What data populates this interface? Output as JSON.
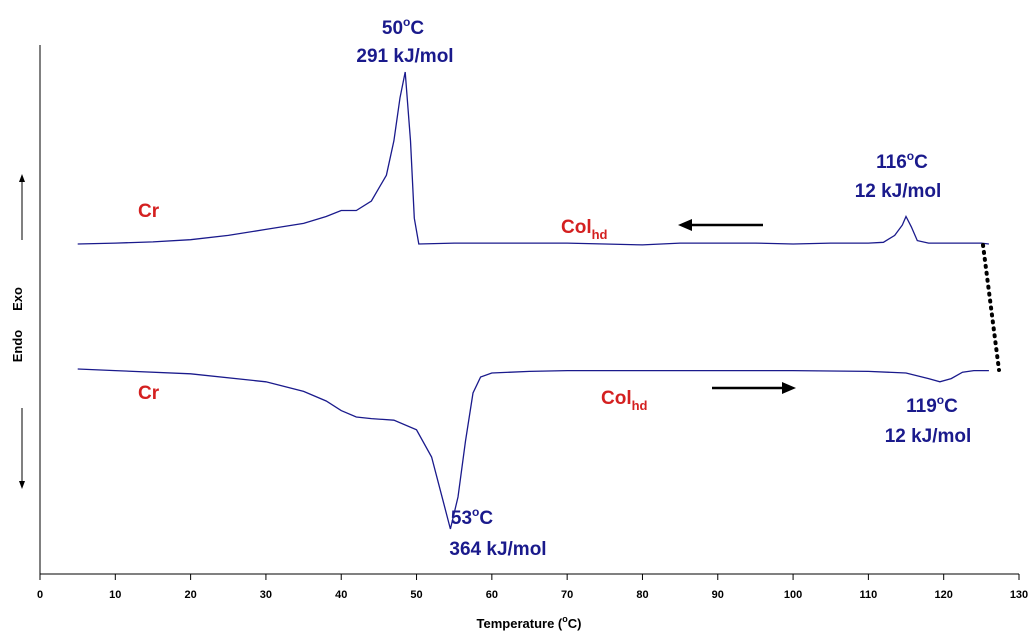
{
  "chart_data": {
    "type": "line",
    "xlabel": "Temperature (°C)",
    "xlabel_parts": {
      "prefix": "Temperature (",
      "sup": "o",
      "suffix": "C)"
    },
    "ylabel_top": "Exo",
    "ylabel_bottom": "Endo",
    "xlim": [
      0,
      130
    ],
    "xticks": [
      0,
      10,
      20,
      30,
      40,
      50,
      60,
      70,
      80,
      90,
      100,
      110,
      120,
      130
    ],
    "series": [
      {
        "role": "cooling",
        "color": "#1a1a8c",
        "x": [
          5,
          10,
          15,
          20,
          25,
          30,
          35,
          38,
          40,
          42,
          44,
          46,
          47,
          47.8,
          48.5,
          49.2,
          49.7,
          50.3,
          55,
          60,
          65,
          70,
          75,
          80,
          85,
          90,
          95,
          100,
          105,
          110,
          112,
          113.5,
          114.5,
          115,
          115.7,
          116.5,
          118,
          120,
          125,
          126
        ],
        "y": [
          0.0,
          0.05,
          0.12,
          0.25,
          0.5,
          0.85,
          1.2,
          1.6,
          1.95,
          1.95,
          2.5,
          4.0,
          6.0,
          8.5,
          10.0,
          6.0,
          1.5,
          0.0,
          0.05,
          0.05,
          0.05,
          0.05,
          0.0,
          -0.05,
          0.05,
          0.05,
          0.05,
          0.0,
          0.05,
          0.05,
          0.1,
          0.5,
          1.1,
          1.6,
          1.0,
          0.2,
          0.05,
          0.05,
          0.05,
          0.0
        ]
      },
      {
        "role": "heating",
        "color": "#1a1a8c",
        "x": [
          5,
          10,
          20,
          30,
          35,
          38,
          40,
          42,
          44,
          47,
          50,
          52,
          53.5,
          54.5,
          55.5,
          56.5,
          57.5,
          58.5,
          60,
          65,
          70,
          80,
          90,
          100,
          110,
          115,
          118,
          119.5,
          121,
          122.5,
          124,
          126
        ],
        "y": [
          0.0,
          -0.1,
          -0.3,
          -0.8,
          -1.4,
          -2.0,
          -2.6,
          -3.0,
          -3.1,
          -3.2,
          -3.8,
          -5.5,
          -8.2,
          -10.0,
          -8.0,
          -4.5,
          -1.5,
          -0.5,
          -0.25,
          -0.15,
          -0.1,
          -0.1,
          -0.1,
          -0.1,
          -0.15,
          -0.25,
          -0.6,
          -0.8,
          -0.6,
          -0.2,
          -0.1,
          -0.1
        ]
      }
    ],
    "annotations": [
      {
        "id": "peak-cool-50",
        "temp": "50",
        "enthalpy": "291 kJ/mol"
      },
      {
        "id": "peak-cool-116",
        "temp": "116",
        "enthalpy": "12 kJ/mol"
      },
      {
        "id": "peak-heat-53",
        "temp": "53",
        "enthalpy": "364 kJ/mol"
      },
      {
        "id": "peak-heat-119",
        "temp": "119",
        "enthalpy": "12 kJ/mol"
      }
    ],
    "phase_labels": {
      "cr": "Cr",
      "col_main": "Col",
      "col_sub": "hd"
    },
    "degree_sup": "o",
    "degree_unit": "C",
    "arrows": {
      "cooling": "left",
      "heating": "right"
    }
  }
}
